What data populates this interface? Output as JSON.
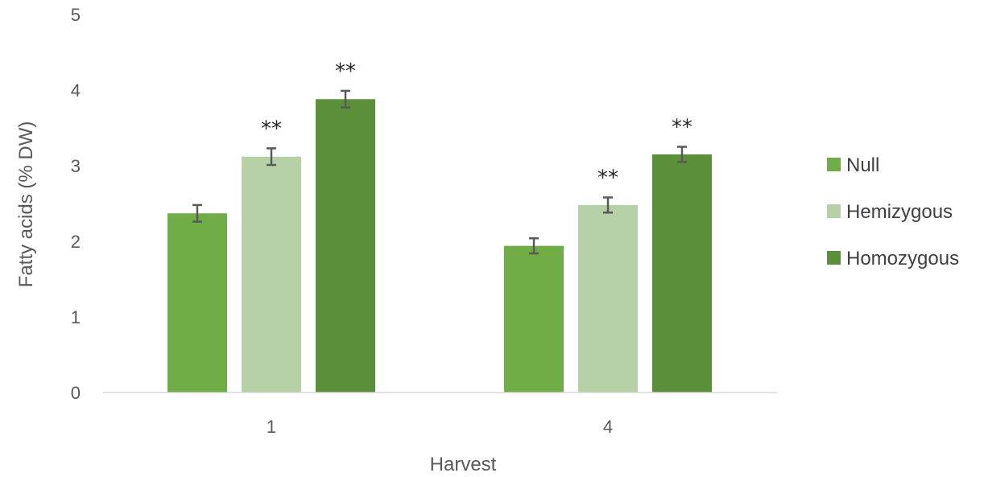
{
  "chart_data": {
    "type": "bar",
    "title": "",
    "xlabel": "Harvest",
    "ylabel": "Fatty acids (% DW)",
    "categories": [
      "1",
      "4"
    ],
    "ylim": [
      0,
      5
    ],
    "yticks": [
      "0",
      "1",
      "2",
      "3",
      "4",
      "5"
    ],
    "grid": false,
    "legend_position": "right",
    "series": [
      {
        "name": "Null",
        "color": "#70ad47",
        "values": [
          2.37,
          1.94
        ],
        "errors": [
          0.11,
          0.1
        ],
        "annotations": [
          "",
          ""
        ]
      },
      {
        "name": "Hemizygous",
        "color": "#b5d1a5",
        "values": [
          3.12,
          2.48
        ],
        "errors": [
          0.11,
          0.1
        ],
        "annotations": [
          "**",
          "**"
        ]
      },
      {
        "name": "Homozygous",
        "color": "#5b8f3a",
        "values": [
          3.88,
          3.15
        ],
        "errors": [
          0.11,
          0.1
        ],
        "annotations": [
          "**",
          "**"
        ]
      }
    ]
  }
}
